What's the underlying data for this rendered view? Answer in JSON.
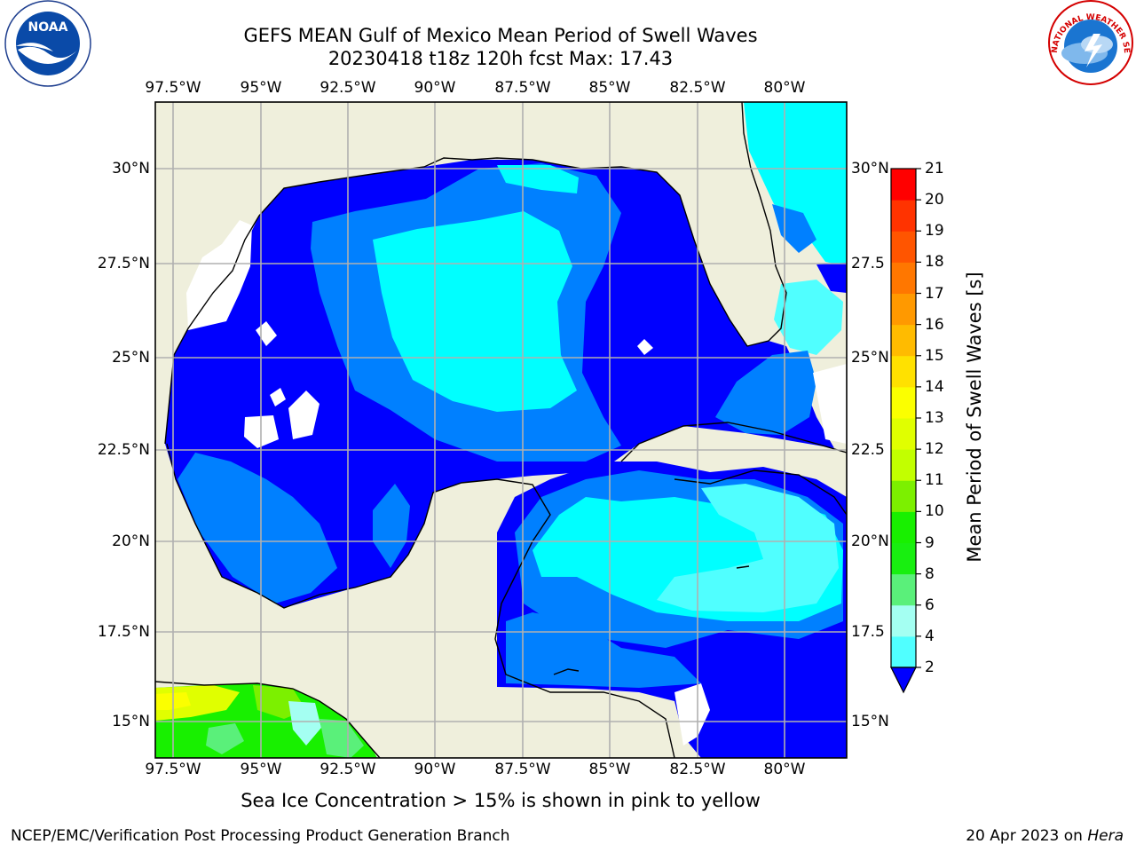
{
  "header": {
    "title_line1": "GEFS MEAN Gulf of Mexico Mean Period of Swell Waves",
    "title_line2": "20230418 t18z 120h fcst   Max: 17.43"
  },
  "logos": {
    "left": "NOAA",
    "right": "NATIONAL WEATHER SERVICE"
  },
  "map": {
    "lon_ticks": [
      "97.5°W",
      "95°W",
      "92.5°W",
      "90°W",
      "87.5°W",
      "85°W",
      "82.5°W",
      "80°W"
    ],
    "lat_ticks_left": [
      "30°N",
      "27.5°N",
      "25°N",
      "22.5°N",
      "20°N",
      "17.5°N",
      "15°N"
    ],
    "lat_ticks_right": [
      "30°N",
      "27.5",
      "25°N",
      "22.5",
      "20°N",
      "17.5",
      "15°N"
    ],
    "land_color": "#efefdc",
    "grid_color": "#b0b0b0"
  },
  "colorbar": {
    "label": "Mean Period of Swell Waves [s]",
    "ticks": [
      "21",
      "20",
      "19",
      "18",
      "17",
      "16",
      "15",
      "14",
      "13",
      "12",
      "11",
      "10",
      "9",
      "8",
      "6",
      "4",
      "2"
    ],
    "colors": [
      "#ff0000",
      "#ff3300",
      "#ff5500",
      "#ff7700",
      "#ff9900",
      "#ffbb00",
      "#ffe100",
      "#fbff00",
      "#e0ff00",
      "#c2ff00",
      "#7cf000",
      "#18f000",
      "#18ef10",
      "#5af07a",
      "#a4fff2",
      "#50ffff",
      "#00ffff",
      "#0080ff",
      "#0000ff"
    ]
  },
  "caption": "Sea Ice Concentration > 15% is shown in pink to yellow",
  "footer": {
    "left": "NCEP/EMC/Verification Post Processing Product Generation Branch",
    "right_date": "20 Apr 2023 on ",
    "right_host": "Hera"
  }
}
